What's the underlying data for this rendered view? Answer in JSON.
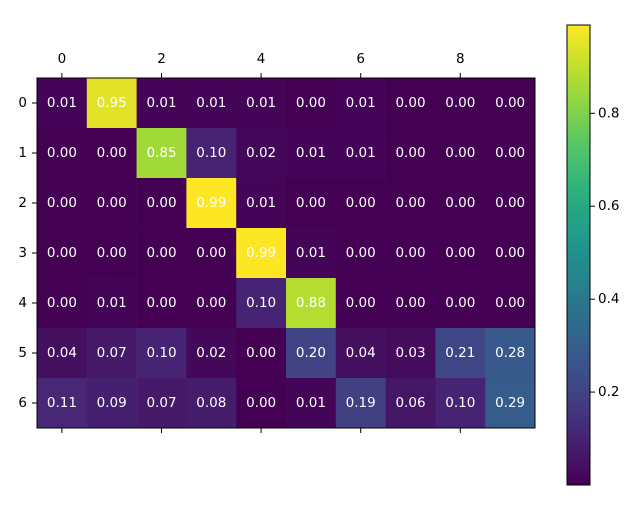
{
  "chart_data": {
    "type": "heatmap",
    "colormap": "viridis",
    "x_ticks": [
      "0",
      "2",
      "4",
      "6",
      "8"
    ],
    "x_tick_positions": [
      0,
      2,
      4,
      6,
      8
    ],
    "x_ticks_location": "top",
    "y_ticks": [
      "0",
      "1",
      "2",
      "3",
      "4",
      "5",
      "6"
    ],
    "values": [
      [
        0.01,
        0.95,
        0.01,
        0.01,
        0.01,
        0.0,
        0.01,
        0.0,
        0.0,
        0.0
      ],
      [
        0.0,
        0.0,
        0.85,
        0.1,
        0.02,
        0.01,
        0.01,
        0.0,
        0.0,
        0.0
      ],
      [
        0.0,
        0.0,
        0.0,
        0.99,
        0.01,
        0.0,
        0.0,
        0.0,
        0.0,
        0.0
      ],
      [
        0.0,
        0.0,
        0.0,
        0.0,
        0.99,
        0.01,
        0.0,
        0.0,
        0.0,
        0.0
      ],
      [
        0.0,
        0.01,
        0.0,
        0.0,
        0.1,
        0.88,
        0.0,
        0.0,
        0.0,
        0.0
      ],
      [
        0.04,
        0.07,
        0.1,
        0.02,
        0.0,
        0.2,
        0.04,
        0.03,
        0.21,
        0.28
      ],
      [
        0.11,
        0.09,
        0.07,
        0.08,
        0.0,
        0.01,
        0.19,
        0.06,
        0.1,
        0.29
      ]
    ],
    "colorbar": {
      "range": [
        0.0,
        0.99
      ],
      "ticks": [
        "0.2",
        "0.4",
        "0.6",
        "0.8"
      ],
      "tick_values": [
        0.2,
        0.4,
        0.6,
        0.8
      ],
      "location": "right"
    },
    "grid": false,
    "legend": "none"
  }
}
